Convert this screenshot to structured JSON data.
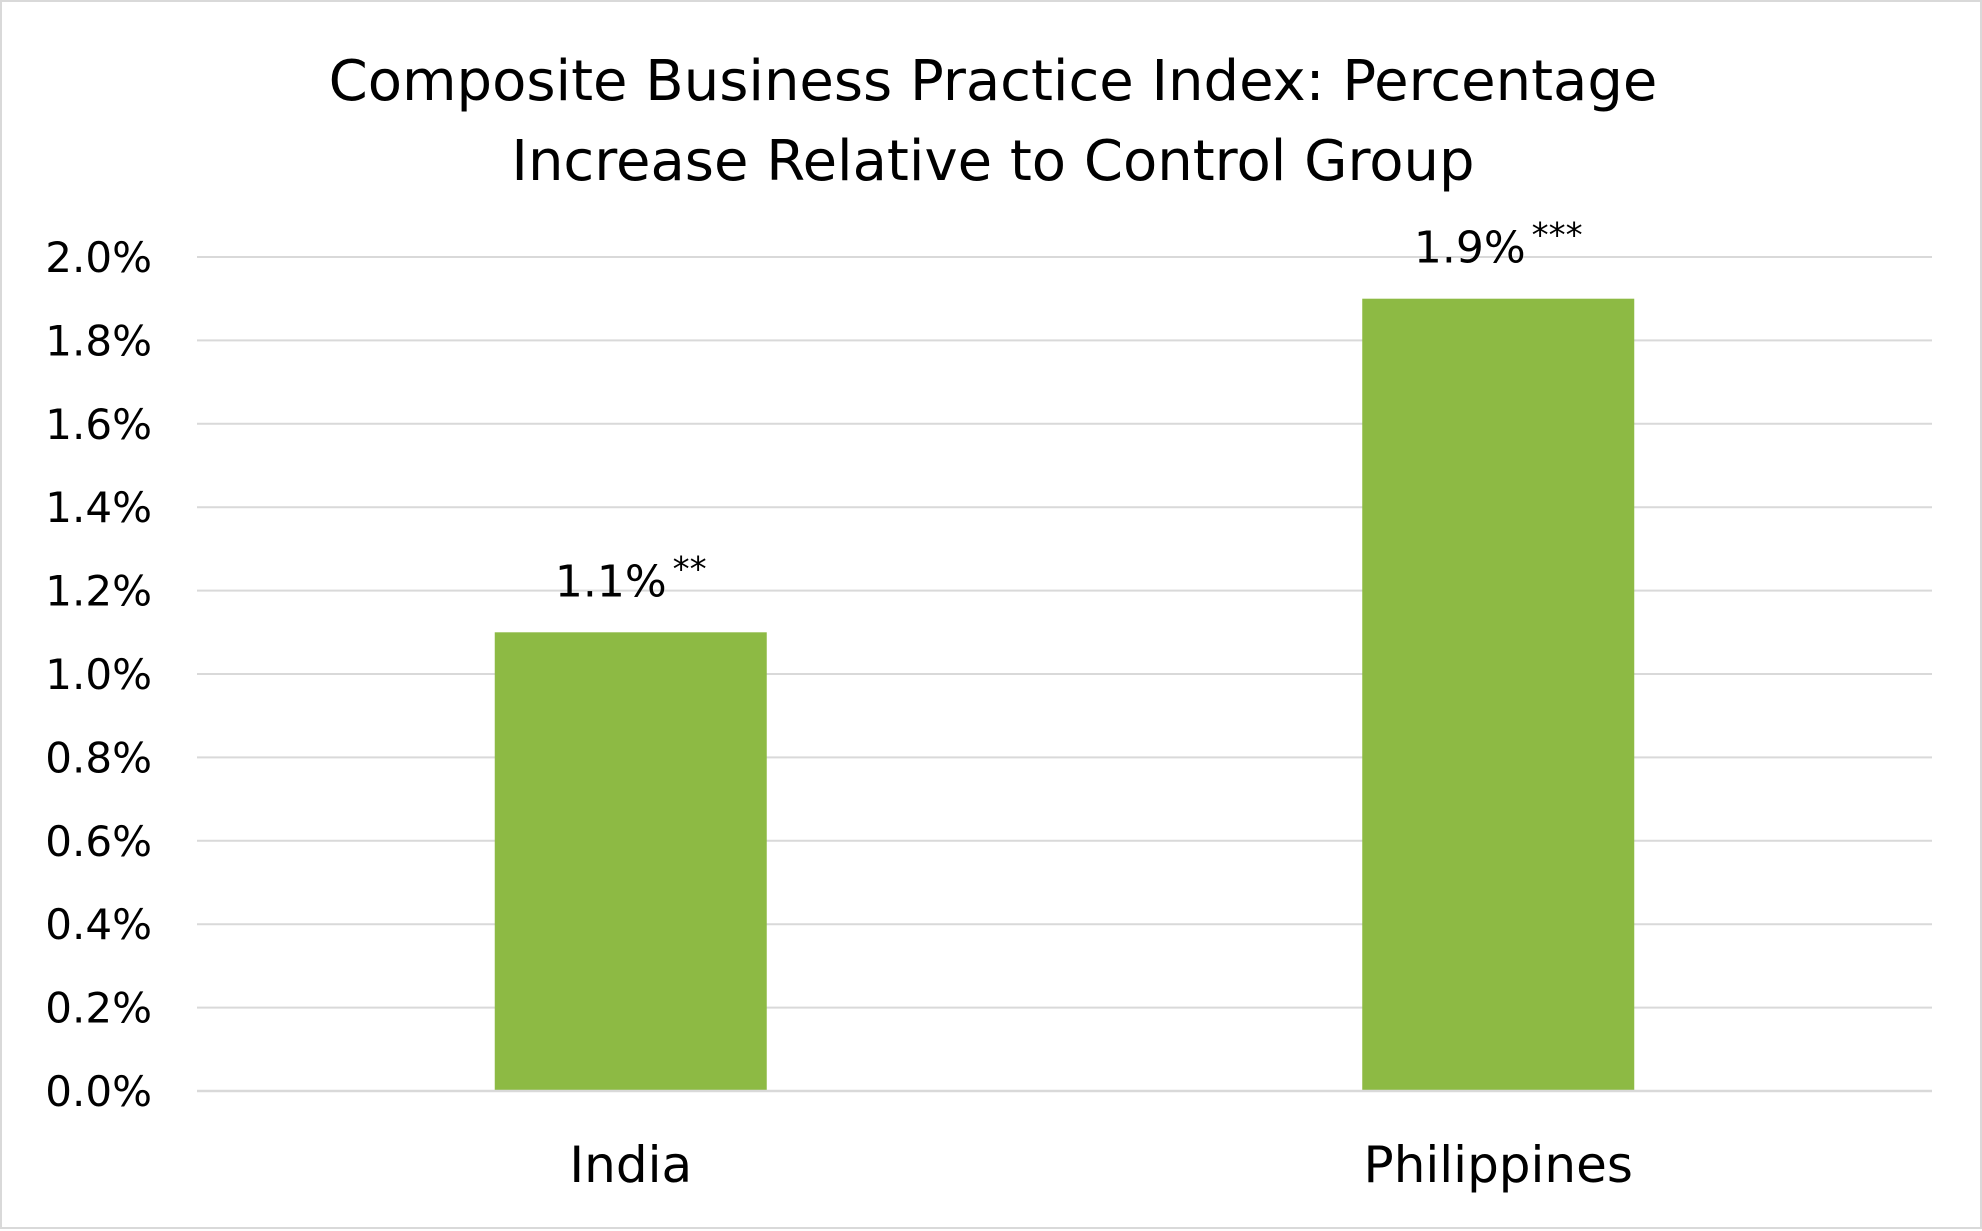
{
  "chart_data": {
    "type": "bar",
    "title_lines": [
      "Composite Business Practice Index: Percentage",
      "Increase Relative to Control Group"
    ],
    "categories": [
      "India",
      "Philippines"
    ],
    "series": [
      {
        "values": [
          1.1,
          1.9
        ],
        "color": "#8dba44",
        "data_labels": [
          "1.1%",
          "1.9%"
        ],
        "significance": [
          "**",
          "***"
        ]
      }
    ],
    "y_ticks": [
      "0.0%",
      "0.2%",
      "0.4%",
      "0.6%",
      "0.8%",
      "1.0%",
      "1.2%",
      "1.4%",
      "1.6%",
      "1.8%",
      "2.0%"
    ],
    "ylim": [
      0,
      2.0
    ],
    "xlabel": "",
    "ylabel": "",
    "grid": true,
    "legend": "none"
  }
}
